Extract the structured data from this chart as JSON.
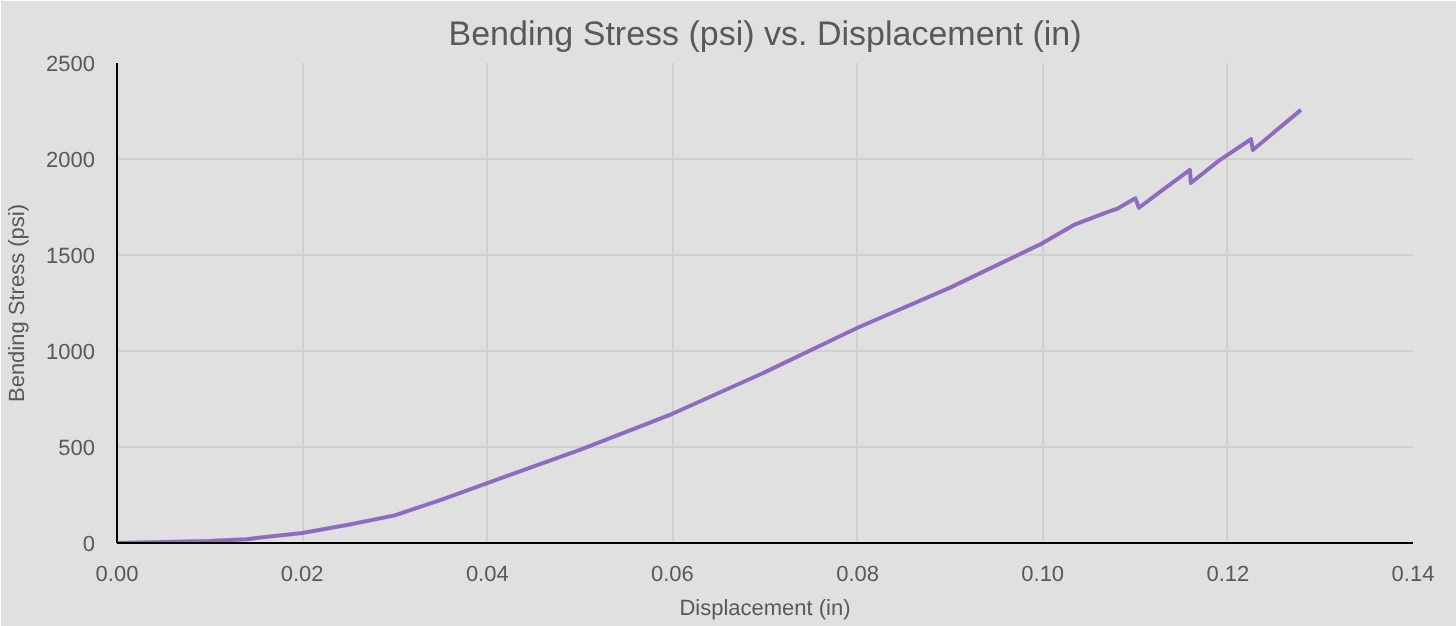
{
  "chart_data": {
    "type": "line",
    "title": "Bending Stress (psi) vs. Displacement (in)",
    "xlabel": "Displacement (in)",
    "ylabel": "Bending Stress (psi)",
    "series": [
      {
        "color": "#8e6bbf",
        "x": [
          0,
          0.005,
          0.01,
          0.014,
          0.02,
          0.025,
          0.03,
          0.035,
          0.04,
          0.05,
          0.06,
          0.07,
          0.08,
          0.09,
          0.1,
          0.1035,
          0.1069,
          0.108,
          0.11,
          0.1104,
          0.113,
          0.1159,
          0.116,
          0.119,
          0.1225,
          0.1227,
          0.1279
        ],
        "values": [
          0,
          5,
          10,
          20,
          52,
          95,
          144,
          225,
          312,
          485,
          673,
          890,
          1121,
          1330,
          1562,
          1660,
          1722,
          1740,
          1795,
          1746,
          1840,
          1943,
          1875,
          1990,
          2103,
          2047,
          2256
        ]
      }
    ],
    "xlim": [
      0,
      0.14
    ],
    "xticks": [
      {
        "value": 0,
        "label": "0.00"
      },
      {
        "value": 0.02,
        "label": "0.02"
      },
      {
        "value": 0.04,
        "label": "0.04"
      },
      {
        "value": 0.06,
        "label": "0.06"
      },
      {
        "value": 0.08,
        "label": "0.08"
      },
      {
        "value": 0.1,
        "label": "0.10"
      },
      {
        "value": 0.12,
        "label": "0.12"
      },
      {
        "value": 0.14,
        "label": "0.14"
      }
    ],
    "ylim": [
      0,
      2500
    ],
    "yticks": [
      0,
      500,
      1000,
      1500,
      2000,
      2500
    ],
    "grid": true,
    "marker": "none",
    "line_style": "solid"
  }
}
